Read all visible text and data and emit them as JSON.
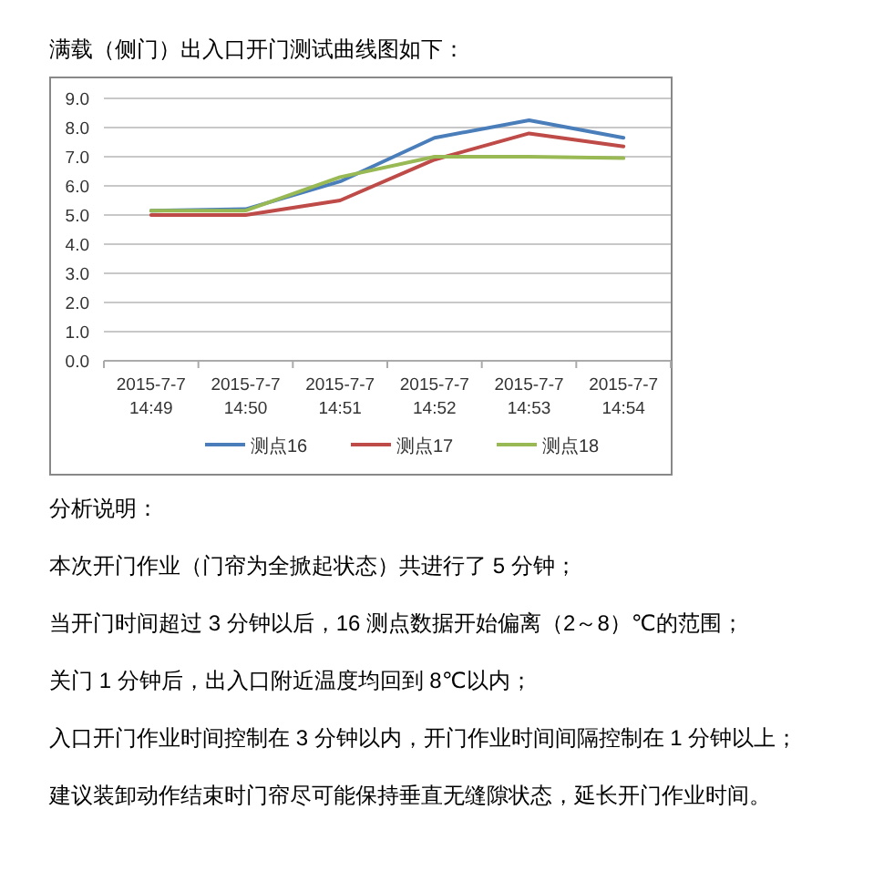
{
  "chart_data": {
    "type": "line",
    "title": "满载（侧门）出入口开门测试曲线图如下：",
    "categories": [
      "2015-7-7 14:49",
      "2015-7-7 14:50",
      "2015-7-7 14:51",
      "2015-7-7 14:52",
      "2015-7-7 14:53",
      "2015-7-7 14:54"
    ],
    "series": [
      {
        "name": "测点16",
        "color": "#4a7ebb",
        "values": [
          5.15,
          5.2,
          6.15,
          7.65,
          8.25,
          7.65
        ]
      },
      {
        "name": "测点17",
        "color": "#be4b48",
        "values": [
          5.0,
          5.0,
          5.5,
          6.9,
          7.8,
          7.35
        ]
      },
      {
        "name": "测点18",
        "color": "#98b954",
        "values": [
          5.15,
          5.15,
          6.3,
          7.0,
          7.0,
          6.95
        ]
      }
    ],
    "ylim": [
      0,
      9
    ],
    "yticks": [
      {
        "value": 0,
        "label": "0.0"
      },
      {
        "value": 1,
        "label": "1.0"
      },
      {
        "value": 2,
        "label": "2.0"
      },
      {
        "value": 3,
        "label": "3.0"
      },
      {
        "value": 4,
        "label": "4.0"
      },
      {
        "value": 5,
        "label": "5.0"
      },
      {
        "value": 6,
        "label": "6.0"
      },
      {
        "value": 7,
        "label": "7.0"
      },
      {
        "value": 8,
        "label": "8.0"
      },
      {
        "value": 9,
        "label": "9.0"
      }
    ],
    "grid": "y",
    "legend": "bottom",
    "marker": "none",
    "line_style": "solid",
    "annotations": [
      "分析说明：",
      "本次开门作业（门帘为全掀起状态）共进行了 5 分钟；",
      "当开门时间超过 3 分钟以后，16 测点数据开始偏离（2～8）℃的范围；",
      "关门 1 分钟后，出入口附近温度均回到 8℃以内；",
      "入口开门作业时间控制在 3 分钟以内，开门作业时间间隔控制在 1 分钟以上；",
      "建议装卸动作结束时门帘尽可能保持垂直无缝隙状态，延长开门作业时间。"
    ]
  }
}
